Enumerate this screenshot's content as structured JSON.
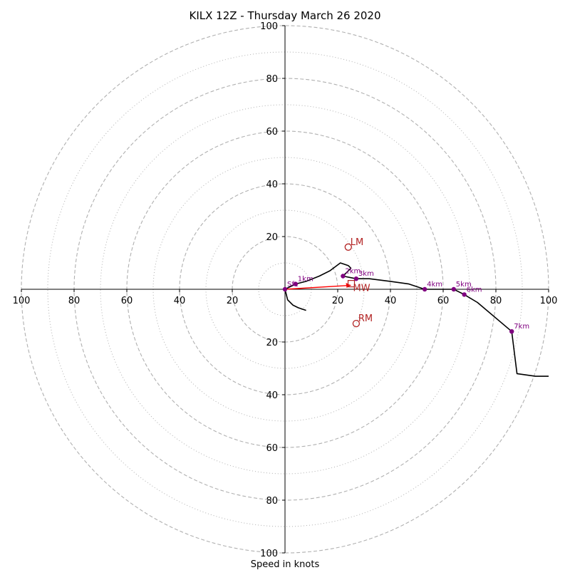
{
  "chart_data": {
    "type": "hodograph",
    "title": "KILX 12Z - Thursday March 26 2020",
    "xlabel": "Speed in knots",
    "range": [
      -100,
      100
    ],
    "major_rings": [
      20,
      40,
      60,
      80,
      100
    ],
    "minor_rings": [
      10,
      30,
      50,
      70,
      90
    ],
    "x_tick_labels": [
      "100",
      "80",
      "60",
      "40",
      "20",
      "20",
      "40",
      "60",
      "80",
      "100"
    ],
    "y_tick_labels": [
      "100",
      "80",
      "60",
      "40",
      "20",
      "20",
      "40",
      "60",
      "80",
      "100"
    ],
    "colors": {
      "trace": "#000000",
      "height_markers": "#800080",
      "motion_markers": "#b22222",
      "shear_vector": "#ff0000",
      "grid": "#b0b0b0"
    },
    "hodograph": {
      "u": [
        0,
        4,
        8,
        13,
        17,
        21,
        24,
        25,
        22,
        27,
        32,
        40,
        47,
        53,
        59,
        64,
        66,
        68,
        73,
        86,
        88,
        95,
        100
      ],
      "v": [
        0,
        2,
        3,
        5,
        7,
        10,
        9,
        8,
        5,
        4,
        4,
        3,
        2,
        0,
        0,
        0,
        -1,
        -2,
        -5,
        -16,
        -32,
        -33,
        -33
      ]
    },
    "lower_loop": {
      "u": [
        0,
        1,
        3,
        5,
        8
      ],
      "v": [
        0,
        -4,
        -6,
        -7,
        -8
      ]
    },
    "height_markers": [
      {
        "label": "Sfc",
        "u": 0,
        "v": 0
      },
      {
        "label": "1km",
        "u": 4,
        "v": 2
      },
      {
        "label": "2km",
        "u": 22,
        "v": 5
      },
      {
        "label": "3km",
        "u": 27,
        "v": 4
      },
      {
        "label": "4km",
        "u": 53,
        "v": 0
      },
      {
        "label": "5km",
        "u": 64,
        "v": 0
      },
      {
        "label": "6km",
        "u": 68,
        "v": -2
      },
      {
        "label": "7km",
        "u": 86,
        "v": -16
      }
    ],
    "storm_motions": [
      {
        "label": "LM",
        "u": 24,
        "v": 16
      },
      {
        "label": "RM",
        "u": 27,
        "v": -13
      }
    ],
    "mean_wind": {
      "label": "MW",
      "u": 25,
      "v": 2
    },
    "shear_vector": {
      "u0": 0,
      "v0": 0,
      "u1": 25,
      "v1": 1.5
    }
  }
}
